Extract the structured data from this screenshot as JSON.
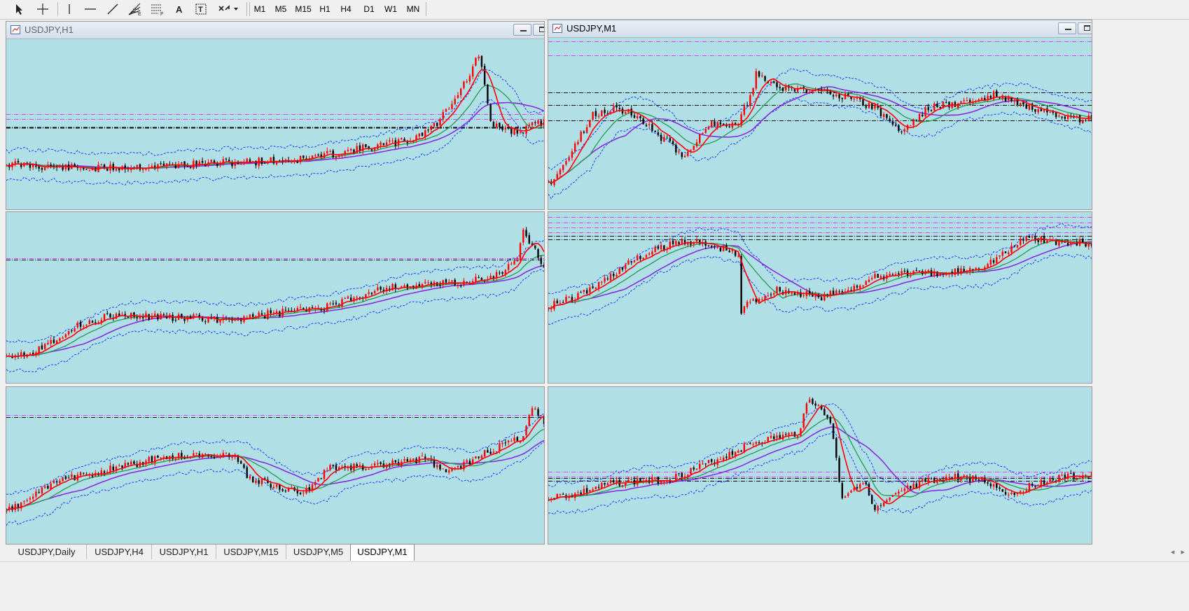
{
  "toolbar": {
    "tools": [
      "cursor-arrow",
      "crosshair",
      "vertical-line",
      "horizontal-line",
      "trendline",
      "fibonacci-fan",
      "fibonacci-retracement",
      "text",
      "text-label",
      "arrows-menu"
    ],
    "timeframes": [
      "M1",
      "M5",
      "M15",
      "H1",
      "H4",
      "D1",
      "W1",
      "MN"
    ]
  },
  "windows": [
    {
      "title": "USDJPY,H1",
      "has_titlebar": true
    },
    {
      "title": "USDJPY,M1",
      "has_titlebar": true
    }
  ],
  "tabs": [
    "USDJPY,Daily",
    "USDJPY,H4",
    "USDJPY,H1",
    "USDJPY,M15",
    "USDJPY,M5",
    "USDJPY,M1"
  ],
  "active_tab": "USDJPY,M1",
  "colors": {
    "chart_bg": "#b0e0e6",
    "candle_up": "#ff0000",
    "candle_down": "#000000",
    "ma_fast": "#ff0000",
    "ma_mid": "#2e9e5a",
    "ma_slow": "#8a2be2",
    "bollinger": "#1e3cff",
    "level_magenta": "#e040fb",
    "level_black": "#000000"
  }
}
